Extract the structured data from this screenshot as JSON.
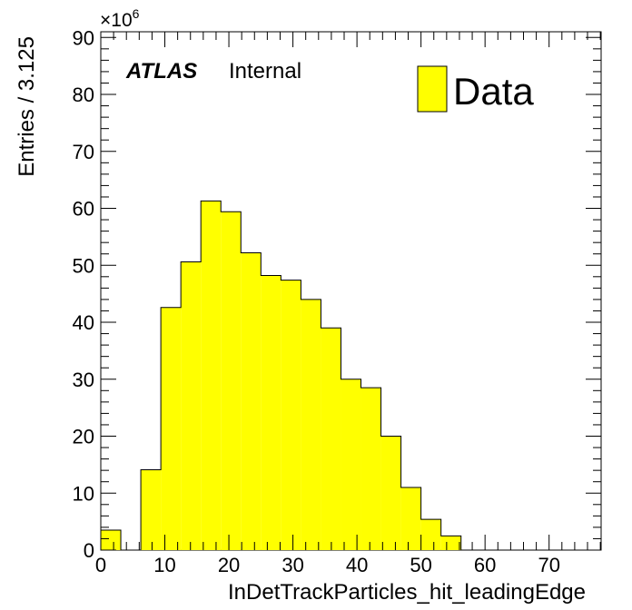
{
  "chart_data": {
    "type": "bar",
    "histogram": true,
    "xlabel": "InDetTrackParticles_hit_leadingEdge",
    "ylabel": "Entries / 3.125",
    "y_multiplier": "×10",
    "y_multiplier_exp": "6",
    "xlim": [
      0,
      78.125
    ],
    "ylim": [
      0,
      91
    ],
    "bin_width": 3.125,
    "x_ticks": [
      "0",
      "10",
      "20",
      "30",
      "40",
      "50",
      "60",
      "70"
    ],
    "y_ticks": [
      "0",
      "10",
      "20",
      "30",
      "40",
      "50",
      "60",
      "70",
      "80",
      "90"
    ],
    "x_tick_values": [
      0,
      10,
      20,
      30,
      40,
      50,
      60,
      70
    ],
    "y_tick_values": [
      0,
      10,
      20,
      30,
      40,
      50,
      60,
      70,
      80,
      90
    ],
    "series": [
      {
        "name": "Data",
        "color": "#ffff00",
        "values": [
          3.5,
          0,
          14.1,
          42.6,
          50.6,
          61.3,
          59.4,
          52.2,
          48.2,
          47.4,
          44.0,
          39.0,
          30.0,
          28.5,
          20.0,
          11.0,
          5.4,
          2.5,
          0,
          0,
          0,
          0,
          0,
          0,
          0
        ]
      }
    ],
    "legend": {
      "position": "top-right",
      "entries": [
        "Data"
      ]
    },
    "grid": false
  },
  "annotation": {
    "experiment": "ATLAS",
    "status": "Internal"
  }
}
